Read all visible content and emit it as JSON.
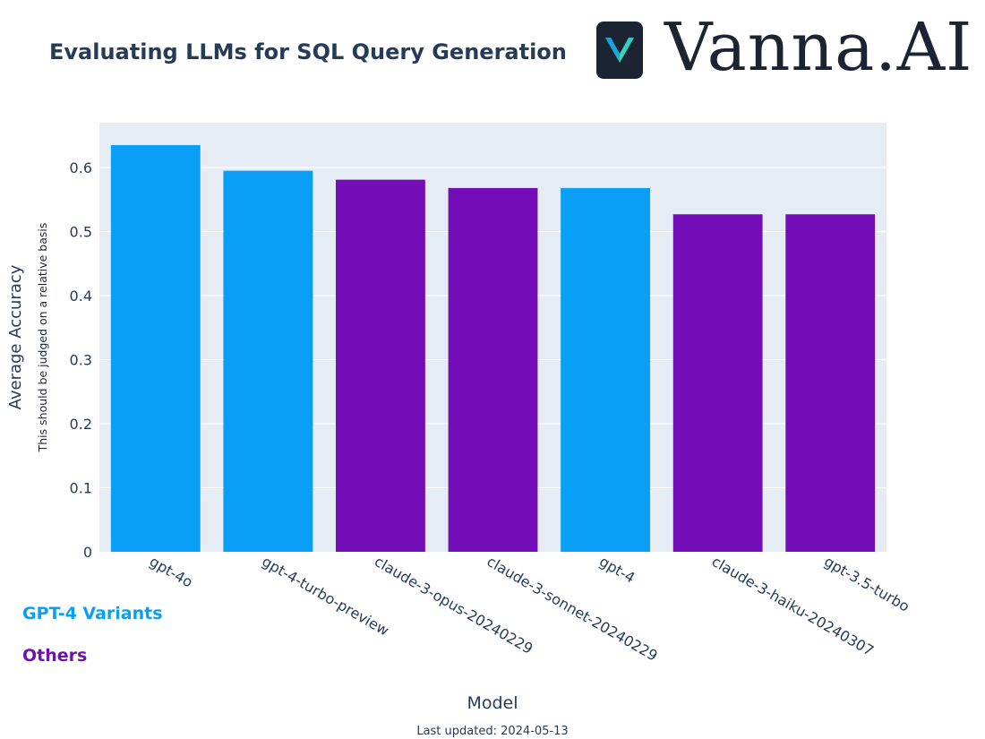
{
  "header": {
    "title": "Evaluating LLMs for SQL Query Generation",
    "brand": "Vanna.AI"
  },
  "legend": {
    "gpt": "GPT-4 Variants",
    "others": "Others"
  },
  "footer": {
    "updated": "Last updated: 2024-05-13"
  },
  "colors": {
    "gpt": "#0a9ff7",
    "others": "#720db7",
    "plot_bg": "#e6ecf4",
    "text": "#243b5a"
  },
  "chart_data": {
    "type": "bar",
    "title": "Evaluating LLMs for SQL Query Generation",
    "xlabel": "Model",
    "ylabel": "Average Accuracy",
    "ysublabel": "This should be judged on a relative basis",
    "ylim": [
      0,
      0.67
    ],
    "yticks": [
      0,
      0.1,
      0.2,
      0.3,
      0.4,
      0.5,
      0.6
    ],
    "ytick_labels": [
      "0",
      "0.1",
      "0.2",
      "0.3",
      "0.4",
      "0.5",
      "0.6"
    ],
    "grid": true,
    "categories": [
      "gpt-4o",
      "gpt-4-turbo-preview",
      "claude-3-opus-20240229",
      "claude-3-sonnet-20240229",
      "gpt-4",
      "claude-3-haiku-20240307",
      "gpt-3.5-turbo"
    ],
    "values": [
      0.635,
      0.595,
      0.581,
      0.568,
      0.568,
      0.527,
      0.527
    ],
    "groups": [
      "gpt",
      "gpt",
      "others",
      "others",
      "gpt",
      "others",
      "others"
    ]
  }
}
